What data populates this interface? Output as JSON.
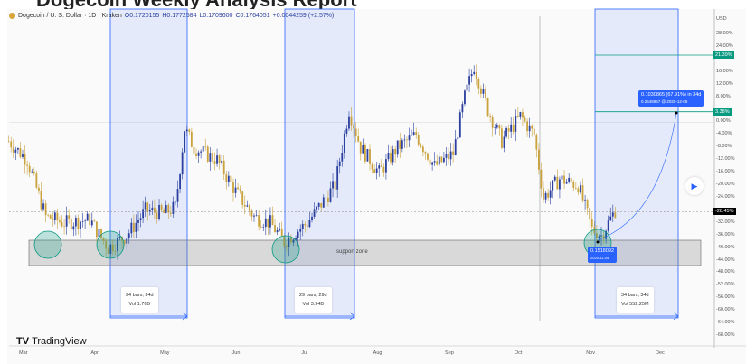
{
  "page_heading": "Dogecoin Weekly Analysis Report",
  "chart_data": {
    "type": "candlestick",
    "header": {
      "symbol": "Dogecoin / U. S. Dollar · 1D · Kraken",
      "open": "O0.1720155",
      "high": "H0.1772584",
      "low": "L0.1709600",
      "close": "C0.1764051",
      "change": "+0.0044259 (+2.57%)"
    },
    "y_axis": {
      "unit": "USD",
      "scale": "percent",
      "range": [
        -68,
        28
      ],
      "ticks": [
        "28.00%",
        "24.00%",
        "16.00%",
        "12.00%",
        "8.00%",
        "0.00%",
        "-4.00%",
        "-8.00%",
        "-12.00%",
        "-16.00%",
        "-20.00%",
        "-24.00%",
        "-32.00%",
        "-36.00%",
        "-40.00%",
        "-44.00%",
        "-48.00%",
        "-52.00%",
        "-56.00%",
        "-60.00%",
        "-64.00%",
        "-68.00%"
      ],
      "tick_values": [
        28,
        24,
        16,
        12,
        8,
        0,
        -4,
        -8,
        -12,
        -16,
        -20,
        -24,
        -32,
        -36,
        -40,
        -44,
        -48,
        -52,
        -56,
        -60,
        -64,
        -68
      ],
      "labels": [
        {
          "text": "21.39%",
          "value": 21.39,
          "color": "#089981"
        },
        {
          "text": "3.38%",
          "value": 3.38,
          "color": "#089981"
        },
        {
          "text": "-28.45%",
          "value": -28.45,
          "color": "#000000"
        }
      ]
    },
    "x_axis": {
      "ticks": [
        "Mar",
        "Apr",
        "May",
        "Jun",
        "Jul",
        "Aug",
        "Sep",
        "Oct",
        "Nov",
        "Dec"
      ],
      "tick_dates": [
        "2025-03-01",
        "2025-04-01",
        "2025-05-01",
        "2025-06-01",
        "2025-07-01",
        "2025-08-01",
        "2025-09-01",
        "2025-10-01",
        "2025-11-01",
        "2025-12-01"
      ]
    },
    "price_path": [
      [
        "2025-02-23",
        -6
      ],
      [
        "2025-03-03",
        -12
      ],
      [
        "2025-03-11",
        -30
      ],
      [
        "2025-03-19",
        -32
      ],
      [
        "2025-03-30",
        -31
      ],
      [
        "2025-04-07",
        -40
      ],
      [
        "2025-04-15",
        -36
      ],
      [
        "2025-04-23",
        -28
      ],
      [
        "2025-05-01",
        -29
      ],
      [
        "2025-05-06",
        -27
      ],
      [
        "2025-05-10",
        -2
      ],
      [
        "2025-05-14",
        -8
      ],
      [
        "2025-05-24",
        -12
      ],
      [
        "2025-06-01",
        -22
      ],
      [
        "2025-06-09",
        -30
      ],
      [
        "2025-06-16",
        -32
      ],
      [
        "2025-06-22",
        -38
      ],
      [
        "2025-07-02",
        -32
      ],
      [
        "2025-07-14",
        -20
      ],
      [
        "2025-07-20",
        4
      ],
      [
        "2025-07-25",
        -8
      ],
      [
        "2025-08-02",
        -16
      ],
      [
        "2025-08-10",
        -8
      ],
      [
        "2025-08-18",
        -4
      ],
      [
        "2025-08-26",
        -14
      ],
      [
        "2025-09-03",
        -10
      ],
      [
        "2025-09-08",
        8
      ],
      [
        "2025-09-12",
        18
      ],
      [
        "2025-09-18",
        4
      ],
      [
        "2025-09-24",
        -6
      ],
      [
        "2025-10-02",
        2
      ],
      [
        "2025-10-08",
        -4
      ],
      [
        "2025-10-12",
        -24
      ],
      [
        "2025-10-19",
        -18
      ],
      [
        "2025-10-27",
        -20
      ],
      [
        "2025-11-02",
        -34
      ],
      [
        "2025-11-06",
        -36
      ],
      [
        "2025-11-12",
        -28
      ]
    ],
    "colors": {
      "up": "#2a3f9f",
      "down": "#c9a23c"
    },
    "annotations": {
      "support_zone": "support zone",
      "measures": [
        {
          "line1": "34 bars, 34d",
          "line2": "Vol 1.76B"
        },
        {
          "line1": "29 bars, 29d",
          "line2": "Vol 3.94B"
        },
        {
          "line1": "34 bars, 34d",
          "line2": "Vol 552.25M"
        }
      ],
      "projection": {
        "line1": "0.1030865 (67.91%) in 34d",
        "line2": "0.2548957 @ 2025-12-08"
      },
      "point": {
        "line1": "0.1518092",
        "line2": "2025-11-04"
      }
    },
    "grid": false
  },
  "branding": {
    "logo_text": "TradingView"
  },
  "controls": {
    "play_icon": "play-icon"
  }
}
